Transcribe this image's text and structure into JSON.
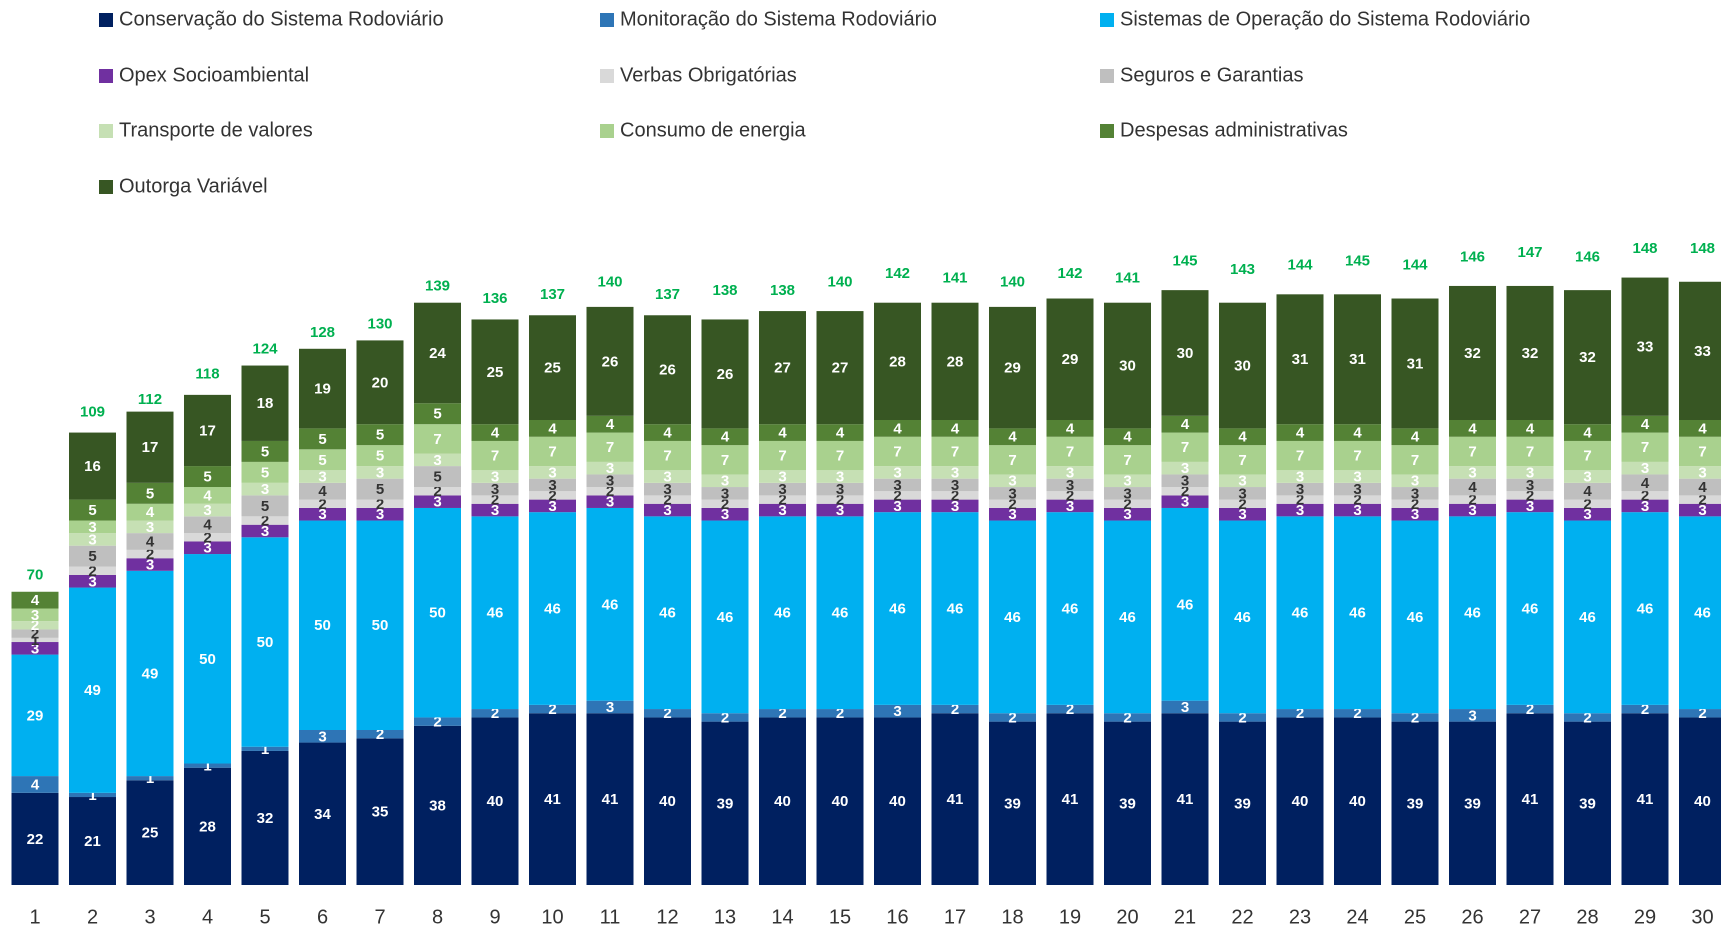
{
  "chart_data": {
    "type": "stacked_bar",
    "categories": [
      "1",
      "2",
      "3",
      "4",
      "5",
      "6",
      "7",
      "8",
      "9",
      "10",
      "11",
      "12",
      "13",
      "14",
      "15",
      "16",
      "17",
      "18",
      "19",
      "20",
      "21",
      "22",
      "23",
      "24",
      "25",
      "26",
      "27",
      "28",
      "29",
      "30"
    ],
    "series": [
      {
        "name": "Conservação do Sistema Rodoviário",
        "color": "#002060",
        "values": [
          22,
          21,
          25,
          28,
          32,
          34,
          35,
          38,
          40,
          41,
          41,
          40,
          39,
          40,
          40,
          40,
          41,
          39,
          41,
          39,
          41,
          39,
          40,
          40,
          39,
          39,
          41,
          39,
          41,
          40
        ]
      },
      {
        "name": "Monitoração do Sistema Rodoviário",
        "color": "#2e75b6",
        "values": [
          4,
          1,
          1,
          1,
          1,
          3,
          2,
          2,
          2,
          2,
          3,
          2,
          2,
          2,
          2,
          3,
          2,
          2,
          2,
          2,
          3,
          2,
          2,
          2,
          2,
          3,
          2,
          2,
          2,
          2
        ]
      },
      {
        "name": "Sistemas de Operação do Sistema Rodoviário",
        "color": "#00b0f0",
        "values": [
          29,
          49,
          49,
          50,
          50,
          50,
          50,
          50,
          46,
          46,
          46,
          46,
          46,
          46,
          46,
          46,
          46,
          46,
          46,
          46,
          46,
          46,
          46,
          46,
          46,
          46,
          46,
          46,
          46,
          46
        ]
      },
      {
        "name": "Opex Socioambiental",
        "color": "#7030a0",
        "values": [
          3,
          3,
          3,
          3,
          3,
          3,
          3,
          3,
          3,
          3,
          3,
          3,
          3,
          3,
          3,
          3,
          3,
          3,
          3,
          3,
          3,
          3,
          3,
          3,
          3,
          3,
          3,
          3,
          3,
          3
        ]
      },
      {
        "name": "Verbas Obrigatórias",
        "color": "#d9d9d9",
        "values": [
          1,
          2,
          2,
          2,
          2,
          2,
          2,
          2,
          2,
          2,
          2,
          2,
          2,
          2,
          2,
          2,
          2,
          2,
          2,
          2,
          2,
          2,
          2,
          2,
          2,
          2,
          2,
          2,
          2,
          2
        ]
      },
      {
        "name": "Seguros e Garantias",
        "color": "#bfbfbf",
        "values": [
          2,
          5,
          4,
          4,
          5,
          4,
          5,
          5,
          3,
          3,
          3,
          3,
          3,
          3,
          3,
          3,
          3,
          3,
          3,
          3,
          3,
          3,
          3,
          3,
          3,
          4,
          3,
          4,
          4,
          4
        ]
      },
      {
        "name": "Transporte de valores",
        "color": "#c6e0b4",
        "values": [
          2,
          3,
          3,
          3,
          3,
          3,
          3,
          3,
          3,
          3,
          3,
          3,
          3,
          3,
          3,
          3,
          3,
          3,
          3,
          3,
          3,
          3,
          3,
          3,
          3,
          3,
          3,
          3,
          3,
          3
        ]
      },
      {
        "name": "Consumo de energia",
        "color": "#a9d18e",
        "values": [
          3,
          3,
          4,
          4,
          5,
          5,
          5,
          7,
          7,
          7,
          7,
          7,
          7,
          7,
          7,
          7,
          7,
          7,
          7,
          7,
          7,
          7,
          7,
          7,
          7,
          7,
          7,
          7,
          7,
          7
        ]
      },
      {
        "name": "Despesas administrativas",
        "color": "#548235",
        "values": [
          4,
          5,
          5,
          5,
          5,
          5,
          5,
          5,
          4,
          4,
          4,
          4,
          4,
          4,
          4,
          4,
          4,
          4,
          4,
          4,
          4,
          4,
          4,
          4,
          4,
          4,
          4,
          4,
          4,
          4
        ]
      },
      {
        "name": "Outorga Variável",
        "color": "#375623",
        "values": [
          null,
          16,
          17,
          17,
          18,
          19,
          20,
          24,
          25,
          25,
          26,
          26,
          26,
          27,
          27,
          28,
          28,
          29,
          29,
          30,
          30,
          30,
          31,
          31,
          31,
          32,
          32,
          32,
          33,
          33
        ]
      }
    ],
    "totals": [
      70,
      109,
      112,
      118,
      124,
      128,
      130,
      139,
      136,
      137,
      140,
      137,
      138,
      138,
      140,
      142,
      141,
      140,
      142,
      141,
      145,
      143,
      144,
      145,
      144,
      146,
      147,
      146,
      148,
      148
    ],
    "ylim": [
      0,
      148
    ],
    "total_color": "#00b050"
  }
}
